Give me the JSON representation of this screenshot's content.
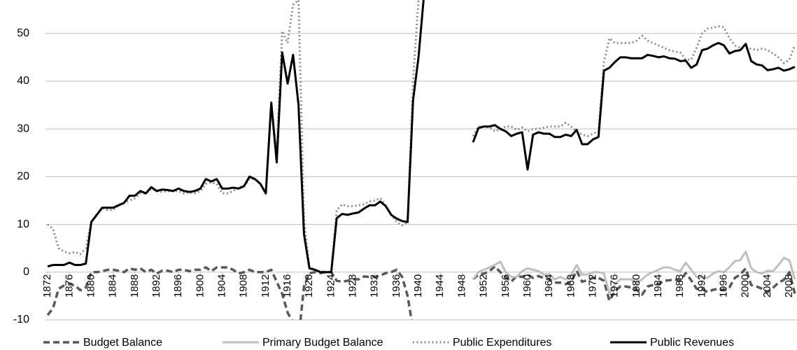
{
  "chart_data": {
    "type": "line",
    "x": [
      1872,
      1873,
      1874,
      1875,
      1876,
      1877,
      1878,
      1879,
      1880,
      1881,
      1882,
      1883,
      1884,
      1885,
      1886,
      1887,
      1888,
      1889,
      1890,
      1891,
      1892,
      1893,
      1894,
      1895,
      1896,
      1897,
      1898,
      1899,
      1900,
      1901,
      1902,
      1903,
      1904,
      1905,
      1906,
      1907,
      1908,
      1909,
      1910,
      1911,
      1912,
      1913,
      1914,
      1915,
      1916,
      1917,
      1918,
      1919,
      1920,
      1921,
      1922,
      1923,
      1924,
      1925,
      1926,
      1927,
      1928,
      1929,
      1930,
      1931,
      1932,
      1933,
      1934,
      1935,
      1936,
      1937,
      1938,
      1939,
      1940,
      1941,
      1942,
      1943,
      1944,
      1945,
      1946,
      1947,
      1948,
      1949,
      1950,
      1951,
      1952,
      1953,
      1954,
      1955,
      1956,
      1957,
      1958,
      1959,
      1960,
      1961,
      1962,
      1963,
      1964,
      1965,
      1966,
      1967,
      1968,
      1969,
      1970,
      1971,
      1972,
      1973,
      1974,
      1975,
      1976,
      1977,
      1978,
      1979,
      1980,
      1981,
      1982,
      1983,
      1984,
      1985,
      1986,
      1987,
      1988,
      1989,
      1990,
      1991,
      1992,
      1993,
      1994,
      1995,
      1996,
      1997,
      1998,
      1999,
      2000,
      2001,
      2002,
      2003,
      2004,
      2005,
      2006,
      2007,
      2008,
      2009
    ],
    "series": [
      {
        "name": "Budget Balance",
        "color": "#595959",
        "style": "dashed",
        "values": [
          -9,
          -7.5,
          -3.5,
          -2.8,
          -2.5,
          -2.8,
          -3.8,
          -3.2,
          0,
          0,
          0.2,
          0.5,
          0.5,
          0.3,
          0,
          0.8,
          0.5,
          0.8,
          0,
          0.5,
          -0.3,
          0.3,
          0.3,
          0,
          0.5,
          0.5,
          0.2,
          0.5,
          0.5,
          1,
          0.2,
          1,
          1,
          1,
          0.5,
          -0.3,
          0,
          0.5,
          0,
          0,
          0,
          0.5,
          -2,
          -4.5,
          -8.5,
          -10.5,
          -14,
          -3,
          -0.2,
          0,
          -0.2,
          0,
          0,
          -1.8,
          -2,
          -1.8,
          -1.5,
          -1.5,
          -0.9,
          -1,
          -1,
          -0.7,
          -0.2,
          0,
          0.5,
          -1,
          -5,
          -12,
          null,
          null,
          null,
          null,
          null,
          null,
          null,
          null,
          null,
          null,
          -1.5,
          -0.5,
          -0.3,
          0.2,
          1.2,
          0,
          -1,
          -2,
          -0.8,
          -1,
          -0.5,
          -1.2,
          -0.8,
          -1.3,
          -1.5,
          -2.2,
          -2.2,
          -2.5,
          -2,
          0.3,
          -2,
          -1.7,
          -1.2,
          -1.2,
          -1.8,
          -6,
          -4,
          -3,
          -3,
          -3.2,
          -3.7,
          -4.7,
          -3,
          -2.7,
          -2.5,
          -1.8,
          -1.7,
          -1.5,
          -1.8,
          -0.2,
          -1.7,
          -3.5,
          -3.5,
          -4.2,
          -3.7,
          -3.5,
          -3.8,
          -3.2,
          -1.2,
          -0.5,
          0.8,
          -2.7,
          -3,
          -3.5,
          -4.2,
          -3.3,
          -2.2,
          -1.6,
          0,
          -4.5
        ]
      },
      {
        "name": "Primary Budget Balance",
        "color": "#bfbfbf",
        "style": "solid",
        "values": [
          null,
          null,
          null,
          null,
          null,
          null,
          null,
          null,
          null,
          null,
          null,
          null,
          null,
          null,
          null,
          null,
          null,
          null,
          null,
          null,
          null,
          null,
          null,
          null,
          null,
          null,
          null,
          null,
          null,
          null,
          null,
          null,
          null,
          null,
          null,
          null,
          null,
          null,
          null,
          null,
          null,
          null,
          null,
          null,
          null,
          null,
          null,
          null,
          null,
          null,
          null,
          null,
          null,
          null,
          null,
          null,
          null,
          null,
          null,
          null,
          null,
          null,
          null,
          null,
          null,
          null,
          null,
          null,
          null,
          null,
          null,
          null,
          null,
          null,
          null,
          null,
          null,
          null,
          -1.5,
          0,
          0.5,
          1,
          1.5,
          2.2,
          0,
          -1,
          -1,
          0.2,
          0.8,
          0.5,
          0.2,
          -0.5,
          -0.5,
          -1.5,
          -1,
          -1.5,
          -0.5,
          1.5,
          -0.5,
          -0.5,
          0,
          0,
          -0.3,
          -4.5,
          -2.5,
          -1.5,
          -1.5,
          -1.5,
          -2.3,
          -1.5,
          -0.5,
          0,
          0.5,
          1,
          1,
          0.5,
          0.2,
          2,
          0.5,
          -1,
          -1,
          -1.2,
          -0.3,
          0.2,
          0,
          1,
          2.3,
          2.5,
          4.3,
          0.8,
          0,
          -0.3,
          0.3,
          0.2,
          1.5,
          3,
          2.5,
          -1.5
        ]
      },
      {
        "name": "Public Expenditures",
        "color": "#8c8c8c",
        "style": "dotted",
        "values": [
          10,
          9,
          5,
          4.3,
          4,
          4.2,
          3.8,
          5,
          10.5,
          12,
          13.5,
          13,
          13,
          14,
          14.5,
          15,
          15.5,
          16.5,
          16.5,
          17.5,
          17,
          16.8,
          17,
          17,
          17,
          16.5,
          16.7,
          16.5,
          17,
          18.5,
          18.8,
          18.5,
          16.5,
          16.5,
          17,
          17.8,
          18,
          19.5,
          19.5,
          18.5,
          16.5,
          35,
          25,
          50.5,
          48,
          56,
          57,
          11,
          1,
          0.5,
          0.2,
          0,
          0,
          13,
          14.2,
          13.8,
          13.8,
          14,
          14.2,
          14.8,
          15,
          15.5,
          14,
          12,
          10.5,
          9.8,
          10.5,
          40,
          57,
          60,
          null,
          null,
          null,
          null,
          null,
          null,
          null,
          null,
          28.5,
          30.5,
          30.5,
          30.3,
          29.5,
          30,
          30.5,
          30.5,
          29.8,
          30.3,
          29.5,
          30,
          30,
          30.3,
          30.5,
          30.5,
          30.5,
          31.3,
          30.5,
          29.5,
          28.8,
          28.5,
          29,
          29.5,
          44,
          49,
          48,
          48,
          48,
          48,
          48.5,
          49.5,
          48.5,
          48,
          47.5,
          47,
          46.5,
          46.2,
          46,
          44.5,
          44.5,
          47,
          50,
          51,
          51.2,
          51.5,
          51.3,
          49,
          47.5,
          47,
          47,
          46.8,
          46.5,
          46.8,
          46.5,
          45.8,
          45,
          43.8,
          44.5,
          47.5
        ]
      },
      {
        "name": "Public Revenues",
        "color": "#000000",
        "style": "solid",
        "values": [
          1.2,
          1.5,
          1.5,
          1.5,
          2,
          1.5,
          1.5,
          1.8,
          10.5,
          12,
          13.5,
          13.5,
          13.5,
          14,
          14.5,
          16,
          16,
          17,
          16.5,
          17.8,
          17,
          17.3,
          17.2,
          17,
          17.5,
          17,
          16.8,
          17,
          17.5,
          19.5,
          19,
          19.5,
          17.5,
          17.5,
          17.7,
          17.5,
          18,
          20,
          19.5,
          18.5,
          16.5,
          35.5,
          23,
          46,
          39.5,
          45.5,
          35,
          8,
          0.8,
          0.5,
          0,
          0,
          0,
          11.3,
          12.2,
          12,
          12.3,
          12.5,
          13.3,
          14,
          14,
          14.8,
          13.8,
          12,
          11.2,
          10.7,
          10.5,
          36,
          45,
          58,
          null,
          null,
          null,
          null,
          null,
          null,
          null,
          null,
          27.2,
          30.2,
          30.5,
          30.5,
          30.8,
          30,
          29.5,
          28.5,
          29,
          29.3,
          21.5,
          28.8,
          29.3,
          29,
          29,
          28.3,
          28.3,
          28.8,
          28.5,
          29.8,
          26.8,
          26.8,
          27.8,
          28.3,
          42.2,
          42.8,
          44,
          45,
          45,
          44.8,
          44.8,
          44.8,
          45.5,
          45.3,
          45,
          45.2,
          44.8,
          44.7,
          44.2,
          44.3,
          42.8,
          43.5,
          46.5,
          46.8,
          47.5,
          48,
          47.5,
          45.8,
          46.3,
          46.5,
          47.8,
          44.2,
          43.5,
          43.3,
          42.3,
          42.5,
          42.8,
          42.2,
          42.5,
          43
        ]
      }
    ],
    "xlim": [
      1871.6,
      2009.4
    ],
    "xticks": [
      1872,
      1876,
      1880,
      1884,
      1888,
      1892,
      1896,
      1900,
      1904,
      1908,
      1912,
      1916,
      1920,
      1924,
      1928,
      1932,
      1936,
      1940,
      1944,
      1948,
      1952,
      1956,
      1960,
      1964,
      1968,
      1972,
      1976,
      1980,
      1984,
      1988,
      1992,
      1996,
      2000,
      2004,
      2008
    ],
    "ylim": [
      -10,
      57
    ],
    "yticks": [
      -10,
      0,
      10,
      20,
      30,
      40,
      50
    ],
    "grid": true,
    "legend": "bottom"
  }
}
